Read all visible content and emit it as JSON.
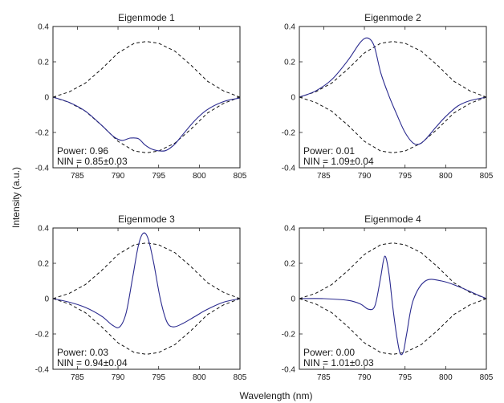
{
  "ylabel": "Intensity (a.u.)",
  "xlabel": "Wavelength (nm)",
  "chart_data": [
    {
      "type": "line",
      "title": "Eigenmode 1",
      "annotations": [
        "Power: 0.96",
        "NIN = 0.85±0.03"
      ],
      "xlim": [
        782,
        805
      ],
      "ylim": [
        -0.4,
        0.4
      ],
      "xticks": [
        785,
        790,
        795,
        800,
        805
      ],
      "yticks": [
        -0.4,
        -0.2,
        0,
        0.2,
        0.4
      ],
      "envelope": {
        "x": [
          782,
          784,
          786,
          788,
          790,
          792,
          793.5,
          795,
          797,
          799,
          801,
          803,
          805
        ],
        "y": [
          0.0,
          0.03,
          0.08,
          0.16,
          0.25,
          0.305,
          0.315,
          0.305,
          0.26,
          0.18,
          0.09,
          0.035,
          0.0
        ]
      },
      "series": [
        {
          "x": [
            782,
            784,
            786,
            788,
            789.5,
            790.5,
            791.5,
            792.5,
            793.3,
            794.2,
            795.2,
            796,
            797,
            798,
            799.5,
            801,
            803,
            805
          ],
          "y": [
            0.0,
            -0.03,
            -0.08,
            -0.16,
            -0.225,
            -0.245,
            -0.232,
            -0.235,
            -0.27,
            -0.295,
            -0.305,
            -0.3,
            -0.265,
            -0.21,
            -0.13,
            -0.07,
            -0.025,
            -0.005
          ]
        }
      ]
    },
    {
      "type": "line",
      "title": "Eigenmode 2",
      "annotations": [
        "Power: 0.01",
        "NIN = 1.09±0.04"
      ],
      "xlim": [
        782,
        805
      ],
      "ylim": [
        -0.4,
        0.4
      ],
      "xticks": [
        785,
        790,
        795,
        800,
        805
      ],
      "yticks": [
        -0.4,
        -0.2,
        0,
        0.2,
        0.4
      ],
      "envelope": {
        "x": [
          782,
          784,
          786,
          788,
          790,
          792,
          793.5,
          795,
          797,
          799,
          801,
          803,
          805
        ],
        "y": [
          0.0,
          0.03,
          0.08,
          0.16,
          0.25,
          0.305,
          0.315,
          0.305,
          0.26,
          0.18,
          0.09,
          0.035,
          0.0
        ]
      },
      "series": [
        {
          "x": [
            782,
            784,
            786,
            788,
            789.5,
            790.4,
            791.2,
            792,
            793,
            794,
            795,
            796,
            796.8,
            797.6,
            798.8,
            800,
            801.5,
            803,
            805
          ],
          "y": [
            0.0,
            0.035,
            0.1,
            0.21,
            0.31,
            0.335,
            0.29,
            0.14,
            0.01,
            -0.1,
            -0.2,
            -0.26,
            -0.265,
            -0.235,
            -0.17,
            -0.11,
            -0.05,
            -0.02,
            0.0
          ]
        }
      ]
    },
    {
      "type": "line",
      "title": "Eigenmode 3",
      "annotations": [
        "Power: 0.03",
        "NIN = 0.94±0.04"
      ],
      "xlim": [
        782,
        805
      ],
      "ylim": [
        -0.4,
        0.4
      ],
      "xticks": [
        785,
        790,
        795,
        800,
        805
      ],
      "yticks": [
        -0.4,
        -0.2,
        0,
        0.2,
        0.4
      ],
      "envelope": {
        "x": [
          782,
          784,
          786,
          788,
          790,
          792,
          793.5,
          795,
          797,
          799,
          801,
          803,
          805
        ],
        "y": [
          0.0,
          0.03,
          0.08,
          0.16,
          0.25,
          0.305,
          0.315,
          0.305,
          0.26,
          0.18,
          0.09,
          0.035,
          0.0
        ]
      },
      "series": [
        {
          "x": [
            782,
            784,
            786,
            788,
            789.3,
            790.2,
            791,
            791.8,
            792.5,
            793.1,
            793.7,
            794.4,
            795.2,
            796,
            796.8,
            798,
            799.5,
            801,
            803,
            805
          ],
          "y": [
            0.0,
            -0.02,
            -0.05,
            -0.1,
            -0.15,
            -0.16,
            -0.08,
            0.12,
            0.3,
            0.37,
            0.34,
            0.2,
            0.0,
            -0.13,
            -0.16,
            -0.14,
            -0.1,
            -0.06,
            -0.02,
            0.0
          ]
        }
      ]
    },
    {
      "type": "line",
      "title": "Eigenmode 4",
      "annotations": [
        "Power: 0.00",
        "NIN = 1.01±0.03"
      ],
      "xlim": [
        782,
        805
      ],
      "ylim": [
        -0.4,
        0.4
      ],
      "xticks": [
        785,
        790,
        795,
        800,
        805
      ],
      "yticks": [
        -0.4,
        -0.2,
        0,
        0.2,
        0.4
      ],
      "envelope": {
        "x": [
          782,
          784,
          786,
          788,
          790,
          792,
          793.5,
          795,
          797,
          799,
          801,
          803,
          805
        ],
        "y": [
          0.0,
          0.03,
          0.08,
          0.16,
          0.25,
          0.305,
          0.315,
          0.305,
          0.26,
          0.18,
          0.09,
          0.035,
          0.0
        ]
      },
      "series": [
        {
          "x": [
            782,
            785,
            788,
            789.5,
            790.5,
            791.3,
            792,
            792.5,
            793,
            793.5,
            794,
            794.4,
            794.8,
            795.2,
            796,
            797.5,
            799.5,
            801.5,
            803.5,
            805
          ],
          "y": [
            0.0,
            0.0,
            -0.01,
            -0.03,
            -0.06,
            -0.04,
            0.12,
            0.24,
            0.15,
            -0.05,
            -0.22,
            -0.31,
            -0.3,
            -0.2,
            -0.01,
            0.1,
            0.1,
            0.07,
            0.03,
            0.0
          ]
        }
      ]
    }
  ]
}
